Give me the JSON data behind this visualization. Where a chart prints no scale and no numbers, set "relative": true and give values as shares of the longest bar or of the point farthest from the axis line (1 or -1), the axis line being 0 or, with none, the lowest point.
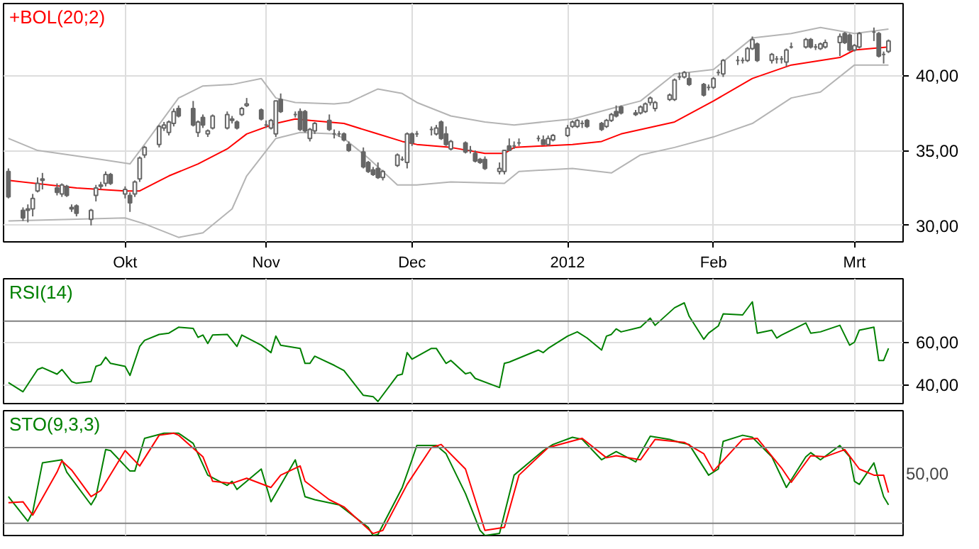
{
  "chart_data": [
    {
      "type": "candlestick",
      "xlim": [
        "2011-09-08",
        "2012-03-11"
      ],
      "ylim": [
        28.9,
        44.8
      ],
      "xticks": [
        {
          "value": "2011-10-03",
          "label": "Okt"
        },
        {
          "value": "2011-11-01",
          "label": "Nov"
        },
        {
          "value": "2011-12-01",
          "label": "Dec"
        },
        {
          "value": "2012-01-02",
          "label": "2012"
        },
        {
          "value": "2012-02-01",
          "label": "Feb"
        },
        {
          "value": "2012-03-01",
          "label": "Mrt"
        }
      ],
      "yticks": [
        {
          "value": 30,
          "label": "30,00"
        },
        {
          "value": 35,
          "label": "35,00"
        },
        {
          "value": 40,
          "label": "40,00"
        }
      ],
      "grid": true,
      "legend": "top left",
      "series": [
        {
          "type": "candlestick",
          "color": "#666666",
          "x": [
            "2011-09-09",
            "2011-09-12",
            "2011-09-13",
            "2011-09-14",
            "2011-09-15",
            "2011-09-16",
            "2011-09-19",
            "2011-09-20",
            "2011-09-21",
            "2011-09-22",
            "2011-09-23",
            "2011-09-26",
            "2011-09-27",
            "2011-09-28",
            "2011-09-29",
            "2011-09-30",
            "2011-10-03",
            "2011-10-04",
            "2011-10-05",
            "2011-10-06",
            "2011-10-07",
            "2011-10-10",
            "2011-10-11",
            "2011-10-12",
            "2011-10-13",
            "2011-10-14",
            "2011-10-17",
            "2011-10-18",
            "2011-10-19",
            "2011-10-20",
            "2011-10-21",
            "2011-10-24",
            "2011-10-25",
            "2011-10-26",
            "2011-10-27",
            "2011-10-28",
            "2011-10-31",
            "2011-11-01",
            "2011-11-02",
            "2011-11-03",
            "2011-11-04",
            "2011-11-07",
            "2011-11-08",
            "2011-11-09",
            "2011-11-10",
            "2011-11-11",
            "2011-11-14",
            "2011-11-15",
            "2011-11-16",
            "2011-11-17",
            "2011-11-18",
            "2011-11-21",
            "2011-11-22",
            "2011-11-23",
            "2011-11-24",
            "2011-11-25",
            "2011-11-28",
            "2011-11-29",
            "2011-11-30",
            "2011-12-01",
            "2011-12-02",
            "2011-12-05",
            "2011-12-06",
            "2011-12-07",
            "2011-12-08",
            "2011-12-09",
            "2011-12-12",
            "2011-12-13",
            "2011-12-14",
            "2011-12-15",
            "2011-12-16",
            "2011-12-19",
            "2011-12-20",
            "2011-12-21",
            "2011-12-22",
            "2011-12-23",
            "2011-12-27",
            "2011-12-28",
            "2011-12-29",
            "2011-12-30",
            "2012-01-02",
            "2012-01-03",
            "2012-01-04",
            "2012-01-05",
            "2012-01-06",
            "2012-01-09",
            "2012-01-10",
            "2012-01-11",
            "2012-01-12",
            "2012-01-13",
            "2012-01-16",
            "2012-01-17",
            "2012-01-18",
            "2012-01-19",
            "2012-01-20",
            "2012-01-23",
            "2012-01-24",
            "2012-01-25",
            "2012-01-26",
            "2012-01-27",
            "2012-01-30",
            "2012-01-31",
            "2012-02-01",
            "2012-02-02",
            "2012-02-03",
            "2012-02-06",
            "2012-02-07",
            "2012-02-08",
            "2012-02-09",
            "2012-02-10",
            "2012-02-13",
            "2012-02-14",
            "2012-02-15",
            "2012-02-16",
            "2012-02-17",
            "2012-02-20",
            "2012-02-21",
            "2012-02-22",
            "2012-02-23",
            "2012-02-24",
            "2012-02-27",
            "2012-02-28",
            "2012-02-29",
            "2012-03-01",
            "2012-03-02",
            "2012-03-05",
            "2012-03-06",
            "2012-03-07",
            "2012-03-08"
          ],
          "ohlc": [
            [
              33.6,
              33.8,
              31.8,
              31.9
            ],
            [
              31.0,
              31.2,
              30.3,
              30.5
            ],
            [
              31.0,
              31.4,
              30.2,
              31.1
            ],
            [
              31.1,
              32.1,
              30.6,
              31.8
            ],
            [
              32.3,
              33.2,
              32.2,
              32.8
            ],
            [
              33.0,
              33.5,
              32.4,
              33.1
            ],
            [
              32.5,
              32.8,
              32.0,
              32.2
            ],
            [
              32.1,
              32.8,
              31.9,
              32.7
            ],
            [
              32.6,
              32.7,
              31.9,
              32.0
            ],
            [
              31.2,
              31.4,
              30.9,
              31.1
            ],
            [
              31.3,
              31.4,
              30.6,
              30.8
            ],
            [
              30.4,
              31.1,
              30.0,
              31.0
            ],
            [
              32.0,
              32.7,
              31.6,
              32.5
            ],
            [
              32.6,
              32.9,
              32.4,
              32.7
            ],
            [
              32.8,
              33.6,
              32.6,
              33.4
            ],
            [
              33.4,
              33.5,
              32.7,
              32.8
            ],
            [
              32.1,
              32.6,
              31.8,
              32.4
            ],
            [
              32.0,
              32.2,
              30.9,
              31.5
            ],
            [
              32.1,
              33.0,
              31.9,
              32.9
            ],
            [
              33.1,
              34.6,
              32.9,
              34.5
            ],
            [
              34.7,
              35.3,
              34.5,
              35.2
            ],
            [
              35.4,
              36.7,
              35.2,
              36.6
            ],
            [
              36.5,
              36.9,
              36.3,
              36.7
            ],
            [
              36.2,
              37.0,
              36.0,
              36.9
            ],
            [
              36.8,
              37.8,
              36.6,
              37.6
            ],
            [
              37.8,
              38.0,
              37.2,
              37.3
            ],
            [
              37.8,
              38.3,
              36.6,
              36.7
            ],
            [
              36.2,
              37.0,
              35.9,
              36.9
            ],
            [
              37.2,
              37.4,
              36.5,
              36.7
            ],
            [
              36.1,
              36.4,
              35.9,
              36.3
            ],
            [
              36.5,
              37.4,
              36.4,
              37.3
            ],
            [
              36.5,
              37.6,
              36.4,
              37.4
            ],
            [
              37.0,
              37.3,
              36.8,
              37.1
            ],
            [
              36.9,
              37.0,
              36.4,
              36.5
            ],
            [
              37.4,
              37.9,
              37.3,
              37.8
            ],
            [
              38.0,
              38.5,
              37.9,
              38.1
            ],
            [
              37.7,
              37.8,
              37.0,
              37.1
            ],
            [
              36.7,
              37.0,
              36.5,
              36.7
            ],
            [
              36.5,
              37.1,
              36.4,
              37.0
            ],
            [
              36.1,
              38.3,
              35.9,
              38.3
            ],
            [
              38.4,
              38.8,
              37.5,
              37.6
            ],
            [
              37.4,
              37.6,
              37.2,
              37.4
            ],
            [
              37.6,
              37.8,
              36.3,
              36.4
            ],
            [
              37.6,
              37.7,
              36.2,
              36.3
            ],
            [
              35.8,
              36.5,
              35.6,
              36.4
            ],
            [
              36.3,
              36.9,
              36.1,
              36.8
            ],
            [
              37.0,
              37.4,
              36.3,
              36.4
            ],
            [
              36.1,
              36.4,
              35.8,
              36.1
            ],
            [
              36.1,
              36.3,
              35.9,
              36.1
            ],
            [
              36.1,
              36.2,
              35.6,
              35.7
            ],
            [
              35.4,
              35.6,
              34.9,
              35.0
            ],
            [
              34.9,
              35.2,
              33.8,
              33.9
            ],
            [
              34.2,
              34.3,
              33.5,
              33.6
            ],
            [
              33.7,
              33.9,
              33.3,
              33.4
            ],
            [
              33.8,
              34.2,
              33.1,
              33.2
            ],
            [
              33.2,
              33.7,
              33.0,
              33.6
            ],
            [
              34.0,
              34.8,
              33.9,
              34.7
            ],
            [
              34.4,
              34.6,
              34.3,
              34.4
            ],
            [
              34.2,
              36.2,
              33.8,
              36.1
            ],
            [
              36.1,
              36.2,
              35.3,
              35.5
            ],
            [
              36.1,
              36.3,
              35.9,
              36.1
            ],
            [
              36.4,
              36.6,
              36.0,
              36.4
            ],
            [
              36.1,
              36.7,
              36.0,
              36.5
            ],
            [
              36.9,
              37.0,
              35.7,
              35.8
            ],
            [
              36.1,
              36.6,
              35.3,
              35.4
            ],
            [
              35.1,
              35.7,
              35.0,
              35.6
            ],
            [
              35.5,
              35.6,
              34.8,
              34.9
            ],
            [
              35.0,
              35.3,
              34.8,
              35.0
            ],
            [
              34.8,
              35.0,
              34.2,
              34.3
            ],
            [
              34.4,
              34.5,
              34.1,
              34.2
            ],
            [
              34.4,
              34.6,
              33.7,
              33.8
            ],
            [
              33.6,
              34.2,
              33.4,
              33.8
            ],
            [
              33.6,
              35.0,
              33.4,
              35.0
            ],
            [
              35.3,
              35.8,
              35.0,
              35.0
            ],
            [
              35.3,
              35.6,
              35.1,
              35.3
            ],
            [
              35.5,
              35.8,
              35.3,
              35.5
            ],
            [
              35.8,
              36.0,
              35.6,
              35.8
            ],
            [
              35.7,
              36.0,
              35.4,
              35.4
            ],
            [
              35.4,
              36.0,
              35.3,
              35.8
            ],
            [
              35.7,
              36.1,
              35.6,
              36.0
            ],
            [
              36.0,
              36.7,
              35.9,
              36.5
            ],
            [
              36.6,
              37.0,
              36.5,
              36.9
            ],
            [
              36.6,
              37.1,
              36.5,
              37.0
            ],
            [
              36.8,
              37.0,
              36.5,
              36.8
            ],
            [
              37.0,
              37.1,
              36.5,
              36.6
            ],
            [
              36.8,
              36.9,
              36.3,
              36.4
            ],
            [
              36.6,
              37.1,
              36.5,
              37.0
            ],
            [
              37.0,
              37.5,
              36.9,
              37.4
            ],
            [
              37.6,
              38.0,
              37.2,
              37.3
            ],
            [
              37.9,
              38.0,
              37.4,
              37.5
            ],
            [
              37.5,
              37.7,
              37.3,
              37.4
            ],
            [
              37.5,
              38.0,
              37.4,
              37.9
            ],
            [
              37.6,
              38.2,
              37.5,
              38.1
            ],
            [
              38.2,
              38.6,
              38.0,
              38.5
            ],
            [
              37.8,
              38.3,
              37.6,
              38.2
            ],
            [
              38.4,
              38.8,
              38.3,
              38.7
            ],
            [
              38.4,
              39.8,
              38.3,
              39.7
            ],
            [
              39.9,
              40.2,
              39.7,
              39.9
            ],
            [
              39.9,
              40.3,
              39.8,
              40.2
            ],
            [
              39.8,
              40.2,
              39.3,
              39.4
            ],
            [
              39.4,
              39.5,
              38.6,
              38.7
            ],
            [
              39.2,
              39.4,
              39.0,
              39.2
            ],
            [
              39.2,
              39.9,
              39.1,
              39.8
            ],
            [
              40.2,
              40.4,
              40.0,
              40.2
            ],
            [
              40.1,
              41.1,
              39.9,
              41.0
            ],
            [
              41.0,
              41.3,
              40.7,
              41.0
            ],
            [
              41.0,
              41.2,
              40.8,
              41.0
            ],
            [
              41.0,
              41.9,
              40.9,
              41.8
            ],
            [
              41.8,
              42.6,
              41.7,
              42.4
            ],
            [
              42.1,
              42.2,
              40.9,
              41.0
            ],
            [
              41.0,
              41.5,
              40.8,
              41.4
            ],
            [
              41.1,
              41.3,
              40.8,
              41.1
            ],
            [
              41.1,
              41.3,
              40.8,
              41.1
            ],
            [
              40.9,
              41.8,
              40.6,
              41.7
            ],
            [
              41.9,
              42.2,
              41.8,
              41.9
            ],
            [
              41.9,
              42.5,
              41.8,
              42.4
            ],
            [
              42.4,
              42.5,
              41.8,
              41.9
            ],
            [
              41.9,
              42.1,
              41.7,
              41.9
            ],
            [
              41.8,
              42.2,
              41.7,
              42.1
            ],
            [
              41.9,
              42.4,
              41.8,
              42.2
            ],
            [
              42.2,
              42.8,
              41.3,
              42.6
            ],
            [
              42.8,
              42.9,
              42.1,
              42.2
            ],
            [
              42.7,
              42.8,
              41.6,
              41.7
            ],
            [
              41.7,
              42.1,
              41.6,
              42.0
            ],
            [
              41.9,
              42.9,
              41.8,
              42.8
            ],
            [
              42.9,
              43.2,
              42.3,
              42.9
            ],
            [
              42.8,
              42.9,
              41.2,
              41.3
            ],
            [
              41.4,
              41.6,
              40.8,
              41.4
            ],
            [
              41.6,
              42.4,
              41.5,
              42.3
            ]
          ]
        },
        {
          "type": "line",
          "name": "+BOL(20;2)",
          "color": "#ff0000",
          "x": [
            "2011-09-09",
            "2011-09-23",
            "2011-10-03",
            "2011-10-06",
            "2011-10-12",
            "2011-10-18",
            "2011-10-24",
            "2011-10-28",
            "2011-11-03",
            "2011-11-07",
            "2011-11-10",
            "2011-11-17",
            "2011-11-23",
            "2011-11-29",
            "2011-12-02",
            "2011-12-09",
            "2011-12-16",
            "2011-12-20",
            "2011-12-22",
            "2012-01-03",
            "2012-01-09",
            "2012-01-13",
            "2012-01-24",
            "2012-02-01",
            "2012-02-09",
            "2012-02-17",
            "2012-02-27",
            "2012-03-01",
            "2012-03-08"
          ],
          "values": [
            33.0,
            32.5,
            32.3,
            32.3,
            33.3,
            34.1,
            35.1,
            36.1,
            36.8,
            37.1,
            37.0,
            36.8,
            36.2,
            35.6,
            35.4,
            35.2,
            34.8,
            34.8,
            35.2,
            35.4,
            35.6,
            36.1,
            36.9,
            38.3,
            39.8,
            40.7,
            41.2,
            41.7,
            41.9
          ]
        },
        {
          "type": "line",
          "color": "#b4b4b4",
          "x": [
            "2011-09-09",
            "2011-09-15",
            "2011-09-28",
            "2011-10-04",
            "2011-10-07",
            "2011-10-14",
            "2011-10-19",
            "2011-10-25",
            "2011-10-31",
            "2011-11-03",
            "2011-11-07",
            "2011-11-15",
            "2011-11-18",
            "2011-11-24",
            "2011-11-29",
            "2011-12-02",
            "2011-12-09",
            "2011-12-16",
            "2011-12-22",
            "2012-01-03",
            "2012-01-11",
            "2012-01-17",
            "2012-01-24",
            "2012-02-01",
            "2012-02-09",
            "2012-02-17",
            "2012-02-23",
            "2012-03-01",
            "2012-03-08"
          ],
          "values": [
            35.8,
            35.0,
            34.4,
            34.1,
            35.4,
            38.5,
            39.3,
            39.4,
            39.8,
            38.5,
            38.2,
            38.1,
            38.2,
            39.1,
            38.8,
            38.2,
            37.3,
            36.9,
            36.7,
            37.1,
            37.8,
            38.3,
            40.1,
            40.4,
            42.5,
            42.8,
            43.2,
            42.8,
            43.1
          ]
        },
        {
          "type": "line",
          "color": "#b4b4b4",
          "x": [
            "2011-09-09",
            "2011-10-03",
            "2011-10-07",
            "2011-10-14",
            "2011-10-19",
            "2011-10-25",
            "2011-10-28",
            "2011-11-03",
            "2011-11-08",
            "2011-11-15",
            "2011-11-17",
            "2011-11-22",
            "2011-11-28",
            "2011-12-02",
            "2011-12-09",
            "2011-12-20",
            "2011-12-23",
            "2012-01-03",
            "2012-01-11",
            "2012-01-17",
            "2012-01-24",
            "2012-02-01",
            "2012-02-09",
            "2012-02-17",
            "2012-02-23",
            "2012-03-01",
            "2012-03-08"
          ],
          "values": [
            30.3,
            30.5,
            30.1,
            29.2,
            29.5,
            31.1,
            33.3,
            35.8,
            36.2,
            36.1,
            35.8,
            34.5,
            32.7,
            32.7,
            32.9,
            32.8,
            33.6,
            33.8,
            33.5,
            34.7,
            35.2,
            35.9,
            36.8,
            38.5,
            38.9,
            40.7,
            40.7
          ]
        }
      ]
    },
    {
      "type": "line",
      "xlim": [
        "2011-09-08",
        "2012-03-11"
      ],
      "ylim": [
        31,
        90
      ],
      "xticks": [
        {
          "value": "2011-10-03",
          "label": null
        },
        {
          "value": "2011-11-01",
          "label": null
        },
        {
          "value": "2011-12-01",
          "label": null
        },
        {
          "value": "2012-01-02",
          "label": null
        },
        {
          "value": "2012-02-01",
          "label": null
        },
        {
          "value": "2012-03-01",
          "label": null
        }
      ],
      "yticks": [
        {
          "value": 40,
          "label": "40,00"
        },
        {
          "value": 60,
          "label": "60,00"
        }
      ],
      "grid": true,
      "legend": "top left",
      "tick_labels": "y",
      "ref_lines": [
        {
          "axis": "y",
          "value": 70,
          "color": "#808080"
        }
      ],
      "series": [
        {
          "name": "RSI(14)",
          "color": "#008000",
          "x": [
            "2011-09-09",
            "2011-09-12",
            "2011-09-15",
            "2011-09-16",
            "2011-09-19",
            "2011-09-20",
            "2011-09-22",
            "2011-09-23",
            "2011-09-26",
            "2011-09-27",
            "2011-09-28",
            "2011-09-29",
            "2011-09-30",
            "2011-10-03",
            "2011-10-04",
            "2011-10-06",
            "2011-10-07",
            "2011-10-10",
            "2011-10-12",
            "2011-10-14",
            "2011-10-17",
            "2011-10-18",
            "2011-10-19",
            "2011-10-20",
            "2011-10-21",
            "2011-10-24",
            "2011-10-26",
            "2011-10-27",
            "2011-10-31",
            "2011-11-02",
            "2011-11-03",
            "2011-11-04",
            "2011-11-08",
            "2011-11-09",
            "2011-11-10",
            "2011-11-11",
            "2011-11-15",
            "2011-11-17",
            "2011-11-21",
            "2011-11-23",
            "2011-11-24",
            "2011-11-28",
            "2011-11-29",
            "2011-11-30",
            "2011-12-01",
            "2011-12-05",
            "2011-12-06",
            "2011-12-08",
            "2011-12-09",
            "2011-12-12",
            "2011-12-13",
            "2011-12-14",
            "2011-12-19",
            "2011-12-20",
            "2011-12-21",
            "2011-12-27",
            "2011-12-28",
            "2011-12-29",
            "2012-01-02",
            "2012-01-04",
            "2012-01-06",
            "2012-01-09",
            "2012-01-10",
            "2012-01-11",
            "2012-01-12",
            "2012-01-13",
            "2012-01-17",
            "2012-01-19",
            "2012-01-20",
            "2012-01-24",
            "2012-01-26",
            "2012-01-27",
            "2012-01-30",
            "2012-01-31",
            "2012-02-02",
            "2012-02-03",
            "2012-02-07",
            "2012-02-09",
            "2012-02-10",
            "2012-02-13",
            "2012-02-14",
            "2012-02-15",
            "2012-02-20",
            "2012-02-21",
            "2012-02-23",
            "2012-02-27",
            "2012-02-29",
            "2012-03-01",
            "2012-03-02",
            "2012-03-05",
            "2012-03-06",
            "2012-03-07",
            "2012-03-08"
          ],
          "values": [
            40.9,
            36.6,
            47.1,
            48.0,
            44.9,
            47.1,
            41.4,
            40.6,
            41.4,
            48.6,
            49.4,
            52.9,
            50.0,
            48.6,
            44.3,
            58.0,
            60.9,
            63.7,
            64.3,
            67.1,
            66.5,
            62.3,
            63.4,
            59.4,
            63.4,
            63.7,
            58.0,
            63.4,
            58.6,
            55.1,
            62.9,
            58.6,
            57.1,
            50.0,
            50.0,
            53.4,
            49.1,
            46.6,
            34.9,
            34.3,
            32.0,
            44.3,
            44.9,
            55.1,
            52.0,
            57.1,
            57.1,
            50.0,
            51.4,
            45.1,
            45.7,
            42.9,
            38.6,
            50.0,
            50.6,
            56.3,
            55.1,
            57.1,
            62.9,
            64.9,
            62.0,
            56.3,
            62.9,
            63.7,
            66.3,
            64.9,
            67.1,
            71.4,
            68.0,
            76.3,
            78.6,
            72.3,
            61.4,
            64.3,
            67.7,
            73.4,
            72.9,
            79.1,
            64.3,
            65.7,
            62.0,
            63.4,
            69.1,
            64.3,
            64.9,
            68.0,
            58.6,
            60.0,
            65.7,
            67.1,
            51.4,
            51.4,
            57.1
          ]
        }
      ]
    },
    {
      "type": "line",
      "xlim": [
        "2011-09-08",
        "2012-03-11"
      ],
      "relative": true,
      "annotations": [
        "50,00"
      ],
      "xticks": [
        {
          "value": "2011-10-03",
          "label": null
        },
        {
          "value": "2011-11-01",
          "label": null
        },
        {
          "value": "2011-12-01",
          "label": null
        },
        {
          "value": "2012-01-02",
          "label": null
        },
        {
          "value": "2012-02-01",
          "label": null
        },
        {
          "value": "2012-03-01",
          "label": null
        }
      ],
      "grid": true,
      "legend": "top left",
      "tick_labels": "y",
      "ref_lines": [
        {
          "axis": "y",
          "value": 0.12,
          "color": "#808080"
        },
        {
          "axis": "y",
          "value": 0.86,
          "color": "#808080"
        }
      ],
      "series": [
        {
          "name": "STO(9,3,3)",
          "color": "#008000",
          "x": [
            "2011-09-09",
            "2011-09-13",
            "2011-09-14",
            "2011-09-16",
            "2011-09-20",
            "2011-09-21",
            "2011-09-26",
            "2011-09-27",
            "2011-09-29",
            "2011-09-30",
            "2011-10-04",
            "2011-10-05",
            "2011-10-07",
            "2011-10-11",
            "2011-10-14",
            "2011-10-17",
            "2011-10-20",
            "2011-10-24",
            "2011-10-25",
            "2011-10-26",
            "2011-10-31",
            "2011-11-02",
            "2011-11-07",
            "2011-11-09",
            "2011-11-11",
            "2011-11-16",
            "2011-11-22",
            "2011-11-23",
            "2011-11-24",
            "2011-11-29",
            "2011-12-01",
            "2011-12-02",
            "2011-12-06",
            "2011-12-08",
            "2011-12-12",
            "2011-12-15",
            "2011-12-16",
            "2011-12-19",
            "2011-12-22",
            "2011-12-28",
            "2011-12-30",
            "2012-01-03",
            "2012-01-05",
            "2012-01-09",
            "2012-01-12",
            "2012-01-16",
            "2012-01-19",
            "2012-01-23",
            "2012-01-25",
            "2012-01-27",
            "2012-01-31",
            "2012-02-02",
            "2012-02-03",
            "2012-02-07",
            "2012-02-09",
            "2012-02-13",
            "2012-02-15",
            "2012-02-16",
            "2012-02-20",
            "2012-02-21",
            "2012-02-23",
            "2012-02-27",
            "2012-02-29",
            "2012-03-01",
            "2012-03-02",
            "2012-03-05",
            "2012-03-06",
            "2012-03-07",
            "2012-03-08"
          ],
          "values": [
            0.38,
            0.14,
            0.23,
            0.71,
            0.74,
            0.62,
            0.3,
            0.38,
            0.84,
            0.83,
            0.63,
            0.63,
            0.95,
            1,
            1,
            0.9,
            0.59,
            0.49,
            0.53,
            0.45,
            0.65,
            0.33,
            0.74,
            0.38,
            0.35,
            0.3,
            0.08,
            0,
            0.01,
            0.47,
            0.74,
            0.88,
            0.88,
            0.8,
            0.41,
            0.05,
            0,
            0.02,
            0.59,
            0.83,
            0.89,
            0.96,
            0.94,
            0.74,
            0.82,
            0.72,
            0.97,
            0.94,
            0.91,
            0.89,
            0.59,
            0.65,
            0.92,
            0.98,
            0.96,
            0.77,
            0.57,
            0.47,
            0.77,
            0.81,
            0.74,
            0.88,
            0.77,
            0.53,
            0.5,
            0.71,
            0.54,
            0.38,
            0.3
          ]
        },
        {
          "color": "#ff0000",
          "x": [
            "2011-09-09",
            "2011-09-12",
            "2011-09-14",
            "2011-09-19",
            "2011-09-20",
            "2011-09-22",
            "2011-09-26",
            "2011-09-28",
            "2011-10-03",
            "2011-10-06",
            "2011-10-10",
            "2011-10-13",
            "2011-10-14",
            "2011-10-19",
            "2011-10-21",
            "2011-10-25",
            "2011-10-28",
            "2011-11-02",
            "2011-11-04",
            "2011-11-08",
            "2011-11-09",
            "2011-11-14",
            "2011-11-17",
            "2011-11-23",
            "2011-11-25",
            "2011-11-30",
            "2011-12-05",
            "2011-12-07",
            "2011-12-12",
            "2011-12-16",
            "2011-12-20",
            "2011-12-23",
            "2011-12-29",
            "2012-01-05",
            "2012-01-10",
            "2012-01-12",
            "2012-01-17",
            "2012-01-20",
            "2012-01-26",
            "2012-01-30",
            "2012-02-01",
            "2012-02-07",
            "2012-02-10",
            "2012-02-15",
            "2012-02-17",
            "2012-02-21",
            "2012-02-24",
            "2012-02-28",
            "2012-03-02",
            "2012-03-05",
            "2012-03-07",
            "2012-03-08"
          ],
          "values": [
            0.32,
            0.33,
            0.2,
            0.62,
            0.73,
            0.64,
            0.38,
            0.44,
            0.83,
            0.68,
            0.98,
            1,
            0.98,
            0.77,
            0.53,
            0.51,
            0.56,
            0.47,
            0.59,
            0.68,
            0.53,
            0.35,
            0.28,
            0.02,
            0.05,
            0.5,
            0.86,
            0.89,
            0.65,
            0.05,
            0.08,
            0.59,
            0.86,
            0.95,
            0.76,
            0.78,
            0.74,
            0.94,
            0.91,
            0.8,
            0.63,
            0.94,
            0.95,
            0.66,
            0.52,
            0.78,
            0.77,
            0.84,
            0.65,
            0.59,
            0.59,
            0.42
          ]
        }
      ]
    }
  ]
}
